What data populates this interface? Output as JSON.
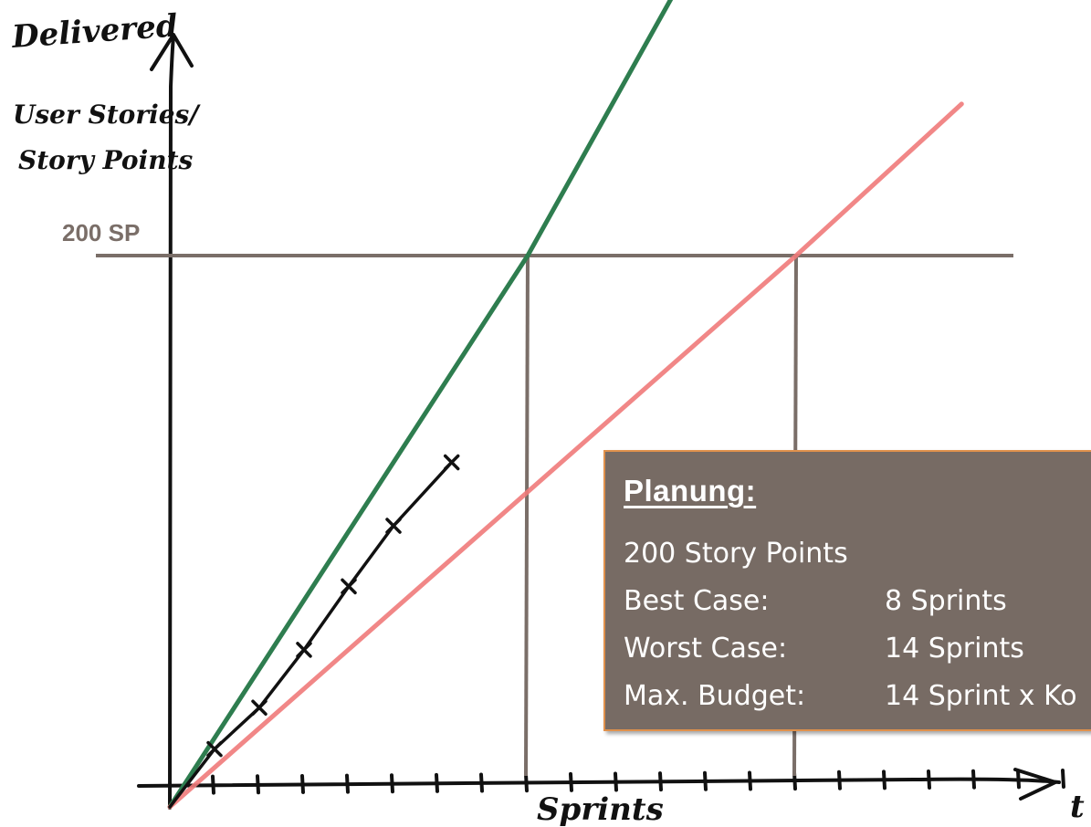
{
  "chart_data": {
    "type": "line",
    "ylabel_top": "Delivered",
    "ylabel_lines": [
      "User Stories/",
      "Story Points"
    ],
    "xlabel": "Sprints",
    "x_axis_end_label": "t",
    "reference_line": {
      "label": "200 SP",
      "y": 200
    },
    "series": [
      {
        "name": "",
        "color": "#2e7d4f",
        "x": [
          0,
          8,
          12.3
        ],
        "y": [
          0,
          200,
          325
        ]
      },
      {
        "name": "",
        "color": "#ef7a7a",
        "x": [
          0,
          14,
          17.7
        ],
        "y": [
          0,
          200,
          255
        ]
      },
      {
        "name": "",
        "color": "#111111",
        "x": [
          0,
          1,
          2,
          3,
          4,
          5,
          6.3
        ],
        "y": [
          0,
          21,
          36,
          57,
          80,
          102,
          125
        ]
      }
    ],
    "xlim": [
      0,
      20
    ],
    "ylim": [
      0,
      360
    ],
    "drop_lines_x": [
      8,
      14
    ]
  },
  "plan": {
    "title": "Planung:",
    "lines": [
      {
        "key": "200 Story Points",
        "value": ""
      },
      {
        "key": "Best Case:",
        "value": "8 Sprints"
      },
      {
        "key": "Worst Case:",
        "value": "14 Sprints"
      },
      {
        "key": "Max. Budget:",
        "value": "14 Sprint x Ko"
      }
    ]
  }
}
